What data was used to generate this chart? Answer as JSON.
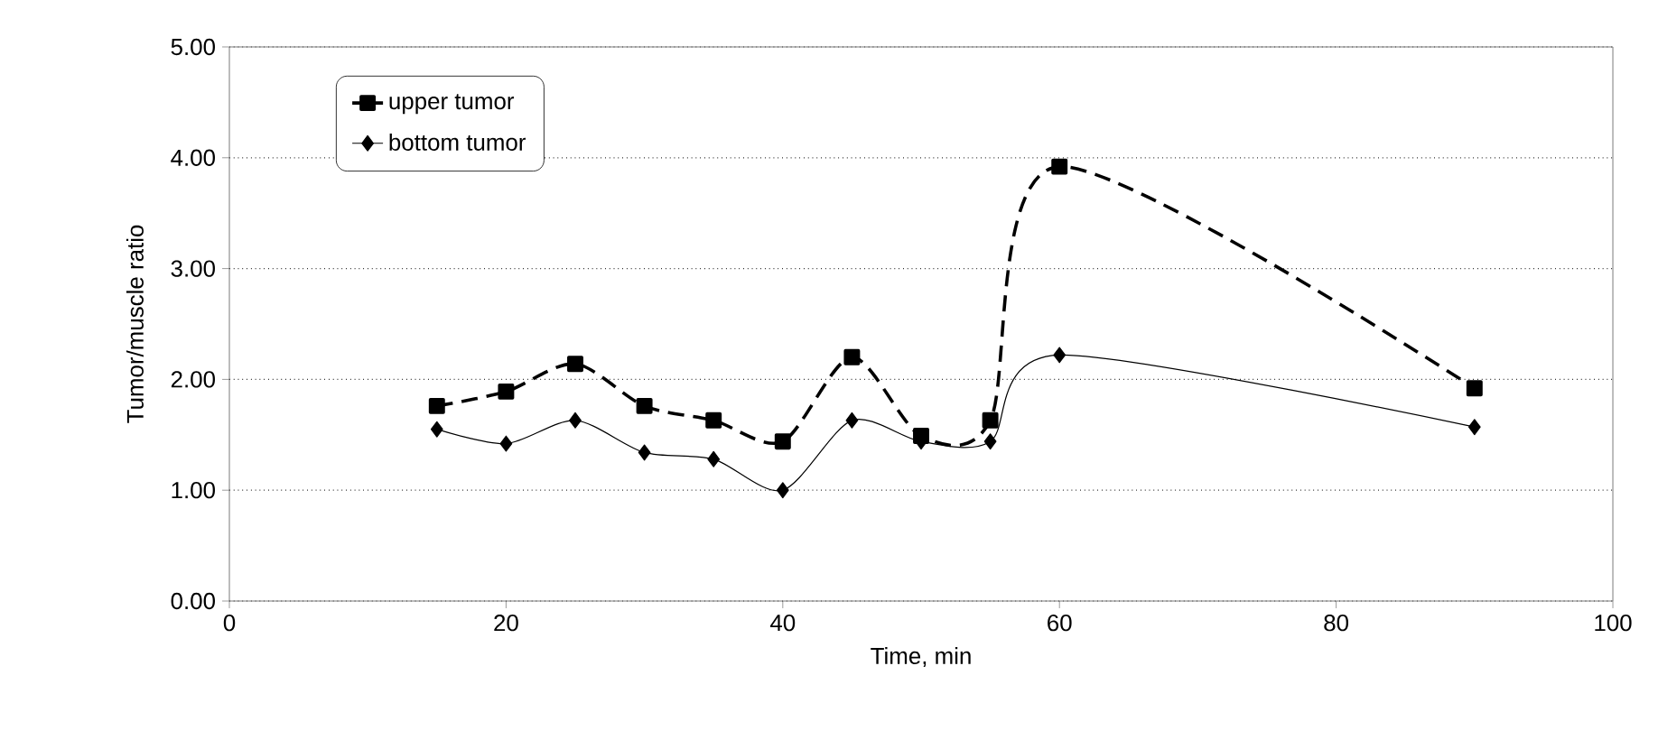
{
  "chart_data": {
    "type": "line",
    "xlabel": "Time, min",
    "ylabel": "Tumor/muscle ratio",
    "x": [
      15,
      20,
      25,
      30,
      35,
      40,
      45,
      50,
      55,
      60,
      90
    ],
    "series": [
      {
        "name": "upper tumor",
        "color": "#000000",
        "line_style": "dashed",
        "marker": "square",
        "values": [
          1.76,
          1.89,
          2.14,
          1.76,
          1.63,
          1.44,
          2.2,
          1.49,
          1.63,
          3.92,
          1.92
        ]
      },
      {
        "name": "bottom tumor",
        "color": "#000000",
        "line_style": "solid",
        "marker": "diamond",
        "values": [
          1.55,
          1.42,
          1.63,
          1.34,
          1.28,
          1.0,
          1.63,
          1.44,
          1.44,
          2.22,
          1.57
        ]
      }
    ],
    "xlim": [
      0,
      100
    ],
    "xticks": [
      0,
      20,
      40,
      60,
      80,
      100
    ],
    "ylim": [
      0,
      5
    ],
    "yticks": [
      {
        "value": 0,
        "label": "0.00"
      },
      {
        "value": 1,
        "label": "1.00"
      },
      {
        "value": 2,
        "label": "2.00"
      },
      {
        "value": 3,
        "label": "3.00"
      },
      {
        "value": 4,
        "label": "4.00"
      },
      {
        "value": 5,
        "label": "5.00"
      }
    ],
    "grid": "y",
    "legend": "top left"
  }
}
